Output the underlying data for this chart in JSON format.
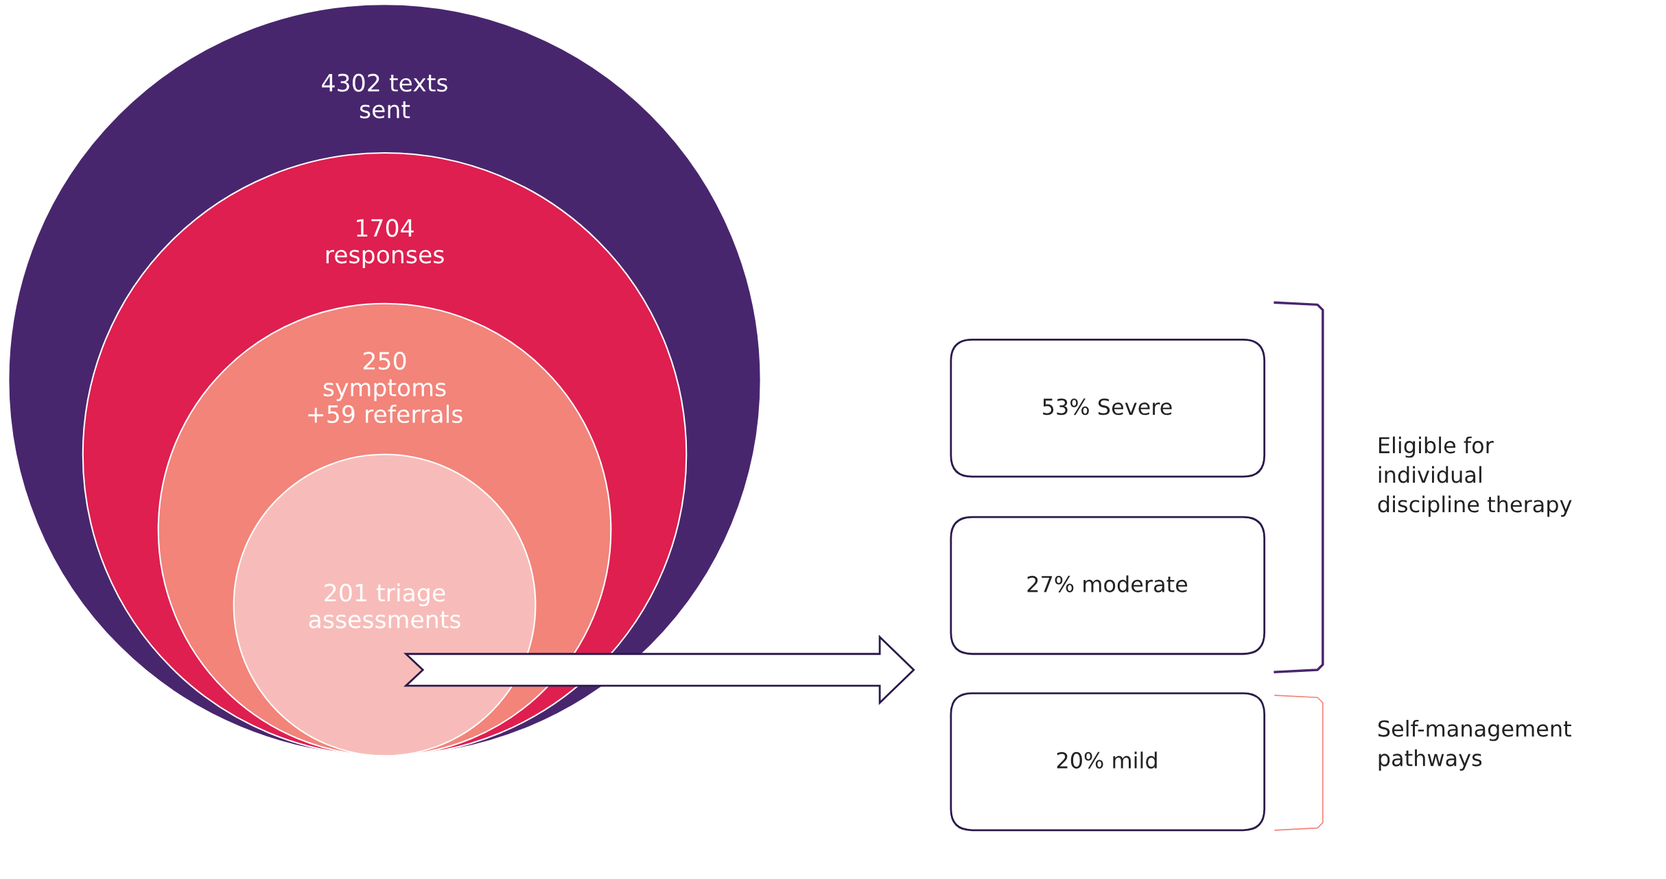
{
  "chart_data": [
    {
      "type": "other",
      "values": [
        4302,
        1704,
        250,
        201
      ],
      "value_labels": [
        "4302 texts\nsent",
        "1704\nresponses",
        "250\nsymptoms\n+59 referrals",
        "201 triage\nassessments"
      ],
      "colors": [
        "#48266e",
        "#de1f50",
        "#f2847a",
        "#f7bcb9"
      ]
    },
    {
      "type": "other",
      "values": [
        53,
        27,
        20
      ],
      "value_labels": [
        "53% Severe",
        "27% moderate",
        "20% mild"
      ],
      "colors": [
        "#2a1a4a",
        "#2a1a4a",
        "#2a1a4a"
      ],
      "annotations": [
        "Eligible for\nindividual\ndiscipline therapy",
        "Self-management\npathways"
      ]
    }
  ]
}
